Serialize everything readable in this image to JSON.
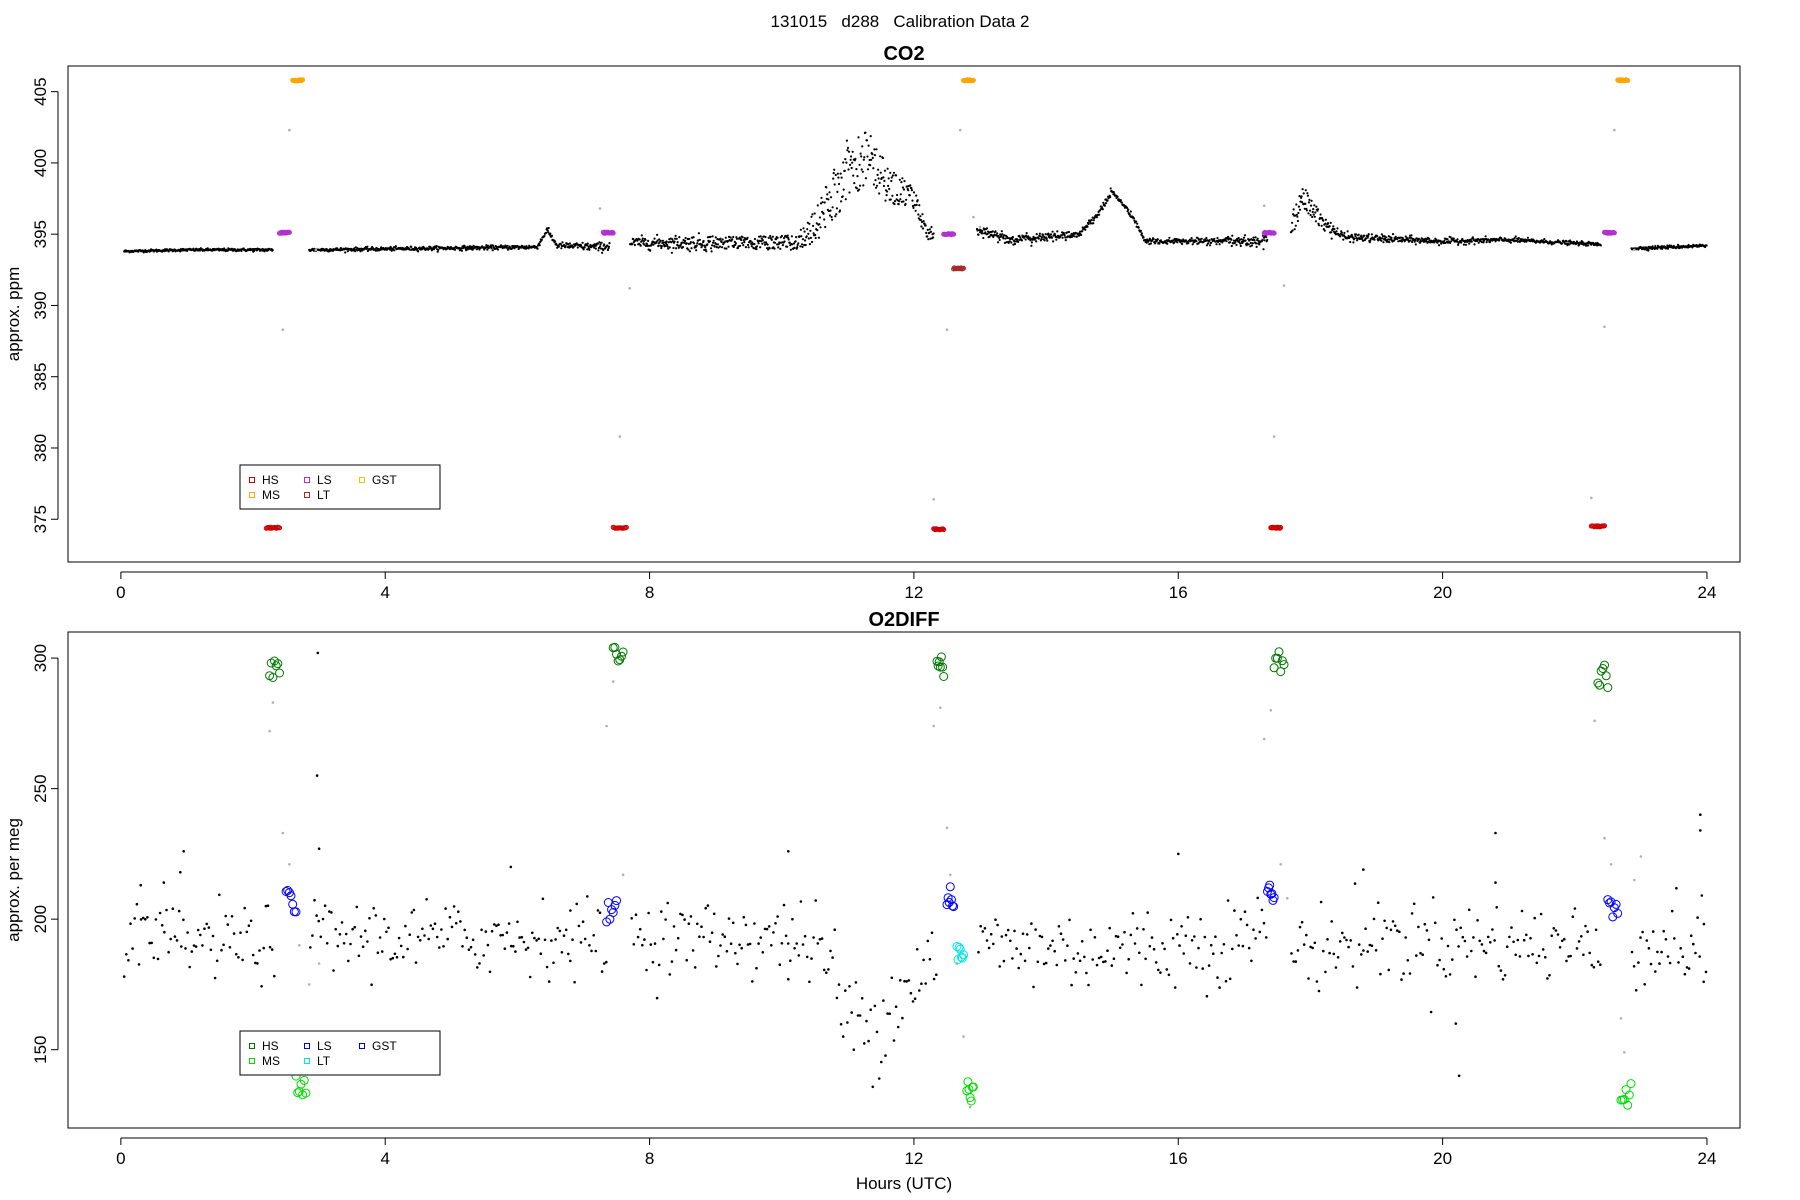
{
  "figure": {
    "suptitle": "131015   d288   Calibration Data 2",
    "xlabel": "Hours (UTC)"
  },
  "colors": {
    "HS": "#cc0000",
    "MS": "#ffa500",
    "LS": "#b030d0",
    "LT": "#a52a2a",
    "GST": "#e8d000",
    "O2_HS": "#007700",
    "O2_MS": "#00dd00",
    "O2_LS": "#0000ff",
    "O2_LT": "#00e5e5",
    "O2_GST": "#0000cc",
    "background_points": "#000000",
    "flagged_points": "#b0b0b0"
  },
  "chart_data": [
    {
      "type": "scatter",
      "title": "CO2",
      "xlabel": "",
      "ylabel": "approx. ppm",
      "xlim": [
        -0.8,
        24.5
      ],
      "ylim": [
        372.0,
        406.8
      ],
      "xticks": [
        "0",
        "4",
        "8",
        "12",
        "16",
        "20",
        "24"
      ],
      "yticks": [
        "375",
        "380",
        "385",
        "390",
        "395",
        "400",
        "405"
      ],
      "legend": {
        "position": "bottom-left",
        "entries": [
          {
            "label": "HS",
            "color_key": "HS"
          },
          {
            "label": "MS",
            "color_key": "MS"
          },
          {
            "label": "LS",
            "color_key": "LS"
          },
          {
            "label": "LT",
            "color_key": "LT"
          },
          {
            "label": "GST",
            "color_key": "GST"
          }
        ]
      },
      "ambient": {
        "x_range": [
          0,
          24
        ],
        "anchors": [
          [
            0.05,
            393.8
          ],
          [
            1.0,
            393.9
          ],
          [
            2.25,
            393.9
          ],
          [
            2.9,
            393.9
          ],
          [
            6.3,
            394.1
          ],
          [
            6.45,
            395.3
          ],
          [
            6.6,
            394.2
          ],
          [
            7.25,
            394.1
          ],
          [
            7.8,
            394.4
          ],
          [
            10.2,
            394.4
          ],
          [
            10.5,
            395.5
          ],
          [
            11.0,
            399.5
          ],
          [
            11.3,
            400.5
          ],
          [
            11.6,
            398.5
          ],
          [
            12.0,
            397.5
          ],
          [
            12.2,
            395.0
          ],
          [
            12.95,
            395.3
          ],
          [
            13.5,
            394.6
          ],
          [
            14.5,
            395.0
          ],
          [
            14.8,
            396.5
          ],
          [
            15.0,
            398.0
          ],
          [
            15.3,
            396.3
          ],
          [
            15.5,
            394.5
          ],
          [
            17.2,
            394.5
          ],
          [
            17.6,
            394.8
          ],
          [
            17.9,
            397.5
          ],
          [
            18.2,
            395.8
          ],
          [
            18.5,
            394.8
          ],
          [
            20.0,
            394.5
          ],
          [
            21.0,
            394.6
          ],
          [
            22.3,
            394.3
          ],
          [
            22.9,
            394.0
          ],
          [
            24.0,
            394.2
          ]
        ],
        "noise": [
          [
            0,
            0.04
          ],
          [
            6.3,
            0.08
          ],
          [
            10.2,
            0.4
          ],
          [
            11.0,
            1.7
          ],
          [
            12.3,
            0.25
          ],
          [
            13.0,
            0.2
          ],
          [
            15.5,
            0.08
          ],
          [
            17.5,
            0.2
          ],
          [
            17.7,
            0.8
          ],
          [
            18.5,
            0.15
          ],
          [
            22.3,
            0.06
          ],
          [
            24.0,
            0.06
          ]
        ],
        "gaps": [
          [
            2.3,
            2.85
          ],
          [
            7.4,
            7.7
          ],
          [
            12.3,
            12.95
          ],
          [
            17.35,
            17.7
          ],
          [
            22.4,
            22.85
          ]
        ]
      },
      "cal_groups": [
        {
          "label": "HS",
          "color_key": "HS",
          "marker": "circle",
          "size": 2,
          "x_ranges": [
            [
              2.2,
              2.4
            ],
            [
              7.45,
              7.65
            ],
            [
              12.3,
              12.45
            ],
            [
              17.4,
              17.55
            ],
            [
              22.25,
              22.45
            ]
          ],
          "y": [
            374.4,
            374.4,
            374.3,
            374.4,
            374.5
          ]
        },
        {
          "label": "MS",
          "color_key": "MS",
          "marker": "circle",
          "size": 2,
          "x_ranges": [
            [
              2.6,
              2.75
            ],
            [
              12.75,
              12.9
            ],
            [
              22.65,
              22.8
            ]
          ],
          "y": [
            405.8,
            405.8,
            405.8
          ]
        },
        {
          "label": "LS",
          "color_key": "LS",
          "marker": "circle",
          "size": 2,
          "x_ranges": [
            [
              2.4,
              2.55
            ],
            [
              7.3,
              7.45
            ],
            [
              12.45,
              12.6
            ],
            [
              17.3,
              17.45
            ],
            [
              22.45,
              22.6
            ]
          ],
          "y": [
            395.1,
            395.1,
            395.0,
            395.1,
            395.1
          ]
        },
        {
          "label": "LT",
          "color_key": "LT",
          "marker": "circle",
          "size": 2,
          "x_ranges": [
            [
              12.6,
              12.75
            ]
          ],
          "y": [
            392.6
          ]
        }
      ],
      "flagged_points": [
        [
          2.3,
          376.0
        ],
        [
          2.45,
          388.3
        ],
        [
          2.55,
          402.3
        ],
        [
          2.95,
          393.9
        ],
        [
          7.25,
          396.8
        ],
        [
          7.55,
          380.8
        ],
        [
          7.7,
          391.2
        ],
        [
          12.3,
          376.4
        ],
        [
          12.5,
          388.3
        ],
        [
          12.7,
          402.3
        ],
        [
          12.9,
          396.2
        ],
        [
          13.0,
          395.5
        ],
        [
          17.3,
          397.0
        ],
        [
          17.45,
          380.8
        ],
        [
          17.6,
          391.4
        ],
        [
          22.25,
          376.5
        ],
        [
          22.45,
          388.5
        ],
        [
          22.6,
          402.3
        ],
        [
          22.9,
          393.9
        ]
      ]
    },
    {
      "type": "scatter",
      "title": "O2DIFF",
      "xlabel": "Hours (UTC)",
      "ylabel": "approx. per meg",
      "xlim": [
        -0.8,
        24.5
      ],
      "ylim": [
        120.0,
        310.0
      ],
      "xticks": [
        "0",
        "4",
        "8",
        "12",
        "16",
        "20",
        "24"
      ],
      "yticks": [
        "150",
        "200",
        "250",
        "300"
      ],
      "legend": {
        "position": "bottom-left",
        "entries": [
          {
            "label": "HS",
            "color_key": "O2_HS"
          },
          {
            "label": "MS",
            "color_key": "O2_MS"
          },
          {
            "label": "LS",
            "color_key": "O2_LS"
          },
          {
            "label": "LT",
            "color_key": "O2_LT"
          },
          {
            "label": "GST",
            "color_key": "O2_GST"
          }
        ]
      },
      "ambient": {
        "x_range": [
          0,
          24
        ],
        "anchors": [
          [
            0.05,
            191
          ],
          [
            2.2,
            191
          ],
          [
            2.9,
            193
          ],
          [
            10.3,
            193
          ],
          [
            10.7,
            185
          ],
          [
            11.0,
            160
          ],
          [
            11.5,
            162
          ],
          [
            12.0,
            178
          ],
          [
            12.3,
            185
          ],
          [
            13.0,
            190
          ],
          [
            15.0,
            188
          ],
          [
            17.0,
            192
          ],
          [
            17.3,
            198
          ],
          [
            17.7,
            188
          ],
          [
            19.0,
            192
          ],
          [
            22.3,
            190
          ],
          [
            22.9,
            190
          ],
          [
            24.0,
            190
          ]
        ],
        "noise": [
          [
            0,
            7
          ],
          [
            10.3,
            7
          ],
          [
            10.8,
            11
          ],
          [
            12.3,
            8
          ],
          [
            24.0,
            8
          ]
        ],
        "gaps": [
          [
            2.35,
            2.85
          ],
          [
            7.35,
            7.7
          ],
          [
            12.35,
            12.95
          ],
          [
            17.35,
            17.7
          ],
          [
            22.4,
            22.85
          ]
        ]
      },
      "cal_groups": [
        {
          "label": "HS",
          "color_key": "O2_HS",
          "marker": "circle",
          "size": 4,
          "x_ranges": [
            [
              2.25,
              2.4
            ],
            [
              7.45,
              7.6
            ],
            [
              12.35,
              12.45
            ],
            [
              17.45,
              17.6
            ],
            [
              22.35,
              22.5
            ]
          ],
          "y": [
            296,
            300,
            296,
            298,
            293
          ]
        },
        {
          "label": "LS",
          "color_key": "O2_LS",
          "marker": "circle",
          "size": 4,
          "x_ranges": [
            [
              2.5,
              2.65
            ],
            [
              7.35,
              7.5
            ],
            [
              12.5,
              12.6
            ],
            [
              17.35,
              17.45
            ],
            [
              22.5,
              22.65
            ]
          ],
          "y": [
            207,
            203,
            208,
            209,
            205
          ]
        },
        {
          "label": "MS",
          "color_key": "O2_MS",
          "marker": "circle",
          "size": 4,
          "x_ranges": [
            [
              2.65,
              2.8
            ],
            [
              12.8,
              12.9
            ],
            [
              22.7,
              22.85
            ]
          ],
          "y": [
            136,
            134,
            133
          ]
        },
        {
          "label": "LT",
          "color_key": "O2_LT",
          "marker": "circle",
          "size": 4,
          "x_ranges": [
            [
              12.65,
              12.75
            ]
          ],
          "y": [
            187
          ]
        }
      ],
      "flagged_points": [
        [
          2.25,
          272
        ],
        [
          2.3,
          283
        ],
        [
          2.45,
          233
        ],
        [
          2.55,
          221
        ],
        [
          2.7,
          190
        ],
        [
          2.85,
          175
        ],
        [
          3.0,
          183
        ],
        [
          7.35,
          274
        ],
        [
          7.45,
          291
        ],
        [
          7.6,
          217
        ],
        [
          12.3,
          274
        ],
        [
          12.4,
          281
        ],
        [
          12.5,
          235
        ],
        [
          12.55,
          217
        ],
        [
          12.65,
          183
        ],
        [
          12.75,
          155
        ],
        [
          12.85,
          128
        ],
        [
          17.3,
          269
        ],
        [
          17.4,
          280
        ],
        [
          17.55,
          221
        ],
        [
          17.65,
          208
        ],
        [
          22.3,
          276
        ],
        [
          22.45,
          231
        ],
        [
          22.55,
          221
        ],
        [
          22.7,
          162
        ],
        [
          22.75,
          149
        ],
        [
          22.9,
          215
        ],
        [
          23.0,
          224
        ]
      ],
      "outliers": [
        [
          0.3,
          213
        ],
        [
          0.65,
          214
        ],
        [
          0.95,
          226
        ],
        [
          0.9,
          218
        ],
        [
          2.98,
          302
        ],
        [
          2.97,
          255
        ],
        [
          3.0,
          227
        ],
        [
          5.9,
          220
        ],
        [
          6.8,
          184
        ],
        [
          10.1,
          226
        ],
        [
          10.1,
          177
        ],
        [
          16.0,
          225
        ],
        [
          18.8,
          219
        ],
        [
          20.2,
          160
        ],
        [
          20.25,
          140
        ],
        [
          20.8,
          233
        ],
        [
          20.8,
          214
        ],
        [
          23.9,
          240
        ],
        [
          23.9,
          234
        ],
        [
          23.95,
          176
        ]
      ]
    }
  ]
}
